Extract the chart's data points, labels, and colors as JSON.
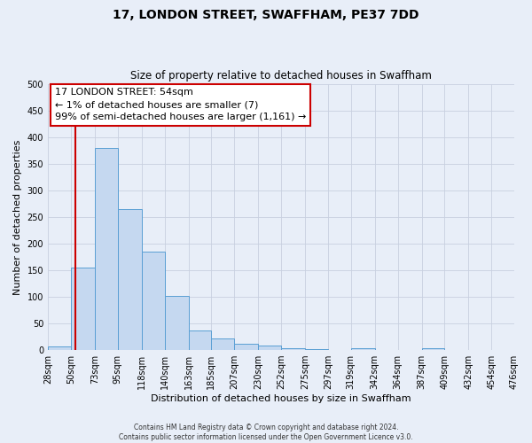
{
  "title": "17, LONDON STREET, SWAFFHAM, PE37 7DD",
  "subtitle": "Size of property relative to detached houses in Swaffham",
  "xlabel": "Distribution of detached houses by size in Swaffham",
  "ylabel": "Number of detached properties",
  "bar_values": [
    7,
    155,
    380,
    265,
    185,
    101,
    37,
    21,
    11,
    9,
    4,
    1,
    0,
    4,
    0,
    0,
    3,
    0,
    0,
    0
  ],
  "bin_edges": [
    28,
    50,
    73,
    95,
    118,
    140,
    163,
    185,
    207,
    230,
    252,
    275,
    297,
    319,
    342,
    364,
    387,
    409,
    432,
    454,
    476
  ],
  "tick_labels": [
    "28sqm",
    "50sqm",
    "73sqm",
    "95sqm",
    "118sqm",
    "140sqm",
    "163sqm",
    "185sqm",
    "207sqm",
    "230sqm",
    "252sqm",
    "275sqm",
    "297sqm",
    "319sqm",
    "342sqm",
    "364sqm",
    "387sqm",
    "409sqm",
    "432sqm",
    "454sqm",
    "476sqm"
  ],
  "bar_color": "#c5d8f0",
  "bar_edge_color": "#5a9fd4",
  "vline_x": 54,
  "vline_color": "#cc0000",
  "ylim": [
    0,
    500
  ],
  "yticks": [
    0,
    50,
    100,
    150,
    200,
    250,
    300,
    350,
    400,
    450,
    500
  ],
  "annotation_lines": [
    "17 LONDON STREET: 54sqm",
    "← 1% of detached houses are smaller (7)",
    "99% of semi-detached houses are larger (1,161) →"
  ],
  "annotation_box_edge_color": "#cc0000",
  "footer_line1": "Contains HM Land Registry data © Crown copyright and database right 2024.",
  "footer_line2": "Contains public sector information licensed under the Open Government Licence v3.0.",
  "figure_bg_color": "#e8eef8",
  "plot_bg_color": "#e8eef8",
  "grid_color": "#c8d0e0",
  "title_fontsize": 10,
  "subtitle_fontsize": 8.5,
  "axis_label_fontsize": 8,
  "tick_fontsize": 7,
  "annotation_fontsize": 8,
  "footer_fontsize": 5.5
}
